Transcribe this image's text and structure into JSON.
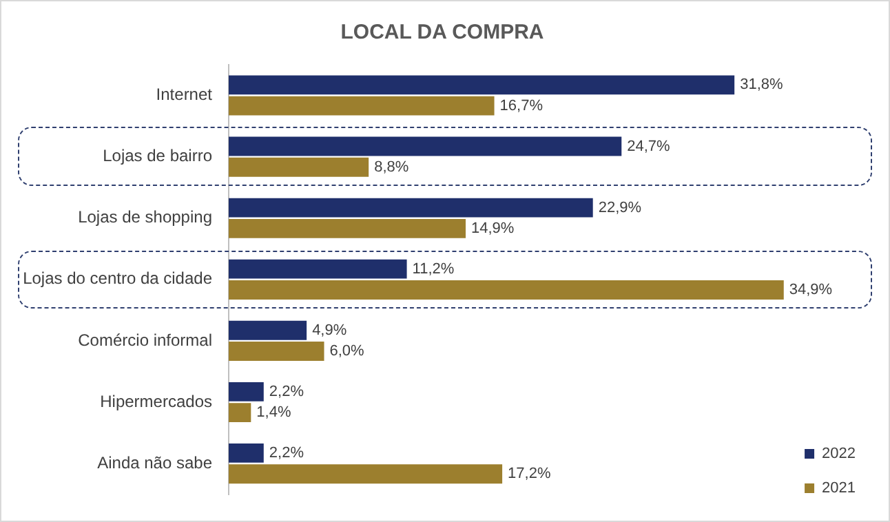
{
  "chart_data": {
    "type": "bar",
    "orientation": "horizontal",
    "title": "LOCAL DA COMPRA",
    "categories": [
      "Internet",
      "Lojas de bairro",
      "Lojas de shopping",
      "Lojas do centro da cidade",
      "Comércio informal",
      "Hipermercados",
      "Ainda não sabe"
    ],
    "series": [
      {
        "name": "2022",
        "color": "#1f2f6b",
        "values": [
          31.8,
          24.7,
          22.9,
          11.2,
          4.9,
          2.2,
          2.2
        ],
        "value_labels": [
          "31,8%",
          "24,7%",
          "22,9%",
          "11,2%",
          "4,9%",
          "2,2%",
          "2,2%"
        ]
      },
      {
        "name": "2021",
        "color": "#9c7f2e",
        "values": [
          16.7,
          8.8,
          14.9,
          34.9,
          6.0,
          1.4,
          17.2
        ],
        "value_labels": [
          "16,7%",
          "8,8%",
          "14,9%",
          "34,9%",
          "6,0%",
          "1,4%",
          "17,2%"
        ]
      }
    ],
    "tick_labels": "y",
    "grid": false,
    "legend": "bottom right"
  }
}
